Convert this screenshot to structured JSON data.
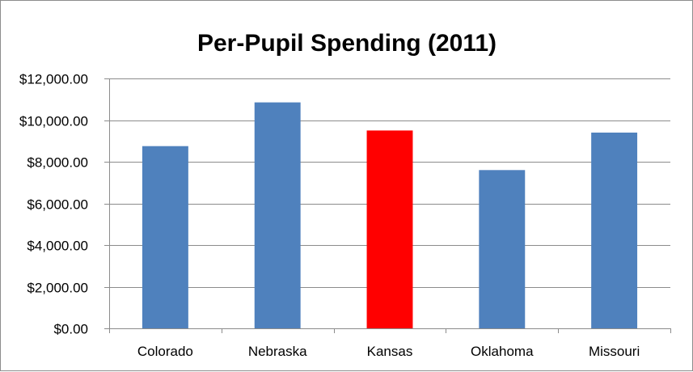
{
  "colors": {
    "default_bar": "#4f81bd",
    "highlight_bar": "#ff0000",
    "gridline": "#8c8c8c",
    "axis": "#8c8c8c"
  },
  "chart_data": {
    "type": "bar",
    "title": "Per-Pupil Spending (2011)",
    "xlabel": "",
    "ylabel": "",
    "categories": [
      "Colorado",
      "Nebraska",
      "Kansas",
      "Oklahoma",
      "Missouri"
    ],
    "values": [
      8750,
      10850,
      9500,
      7600,
      9400
    ],
    "bar_colors": [
      "#4f81bd",
      "#4f81bd",
      "#ff0000",
      "#4f81bd",
      "#4f81bd"
    ],
    "ylim": [
      0,
      12000
    ],
    "yticks": [
      0,
      2000,
      4000,
      6000,
      8000,
      10000,
      12000
    ],
    "ytick_labels": [
      "$0.00",
      "$2,000.00",
      "$4,000.00",
      "$6,000.00",
      "$8,000.00",
      "$10,000.00",
      "$12,000.00"
    ],
    "grid": true,
    "legend": "none"
  }
}
